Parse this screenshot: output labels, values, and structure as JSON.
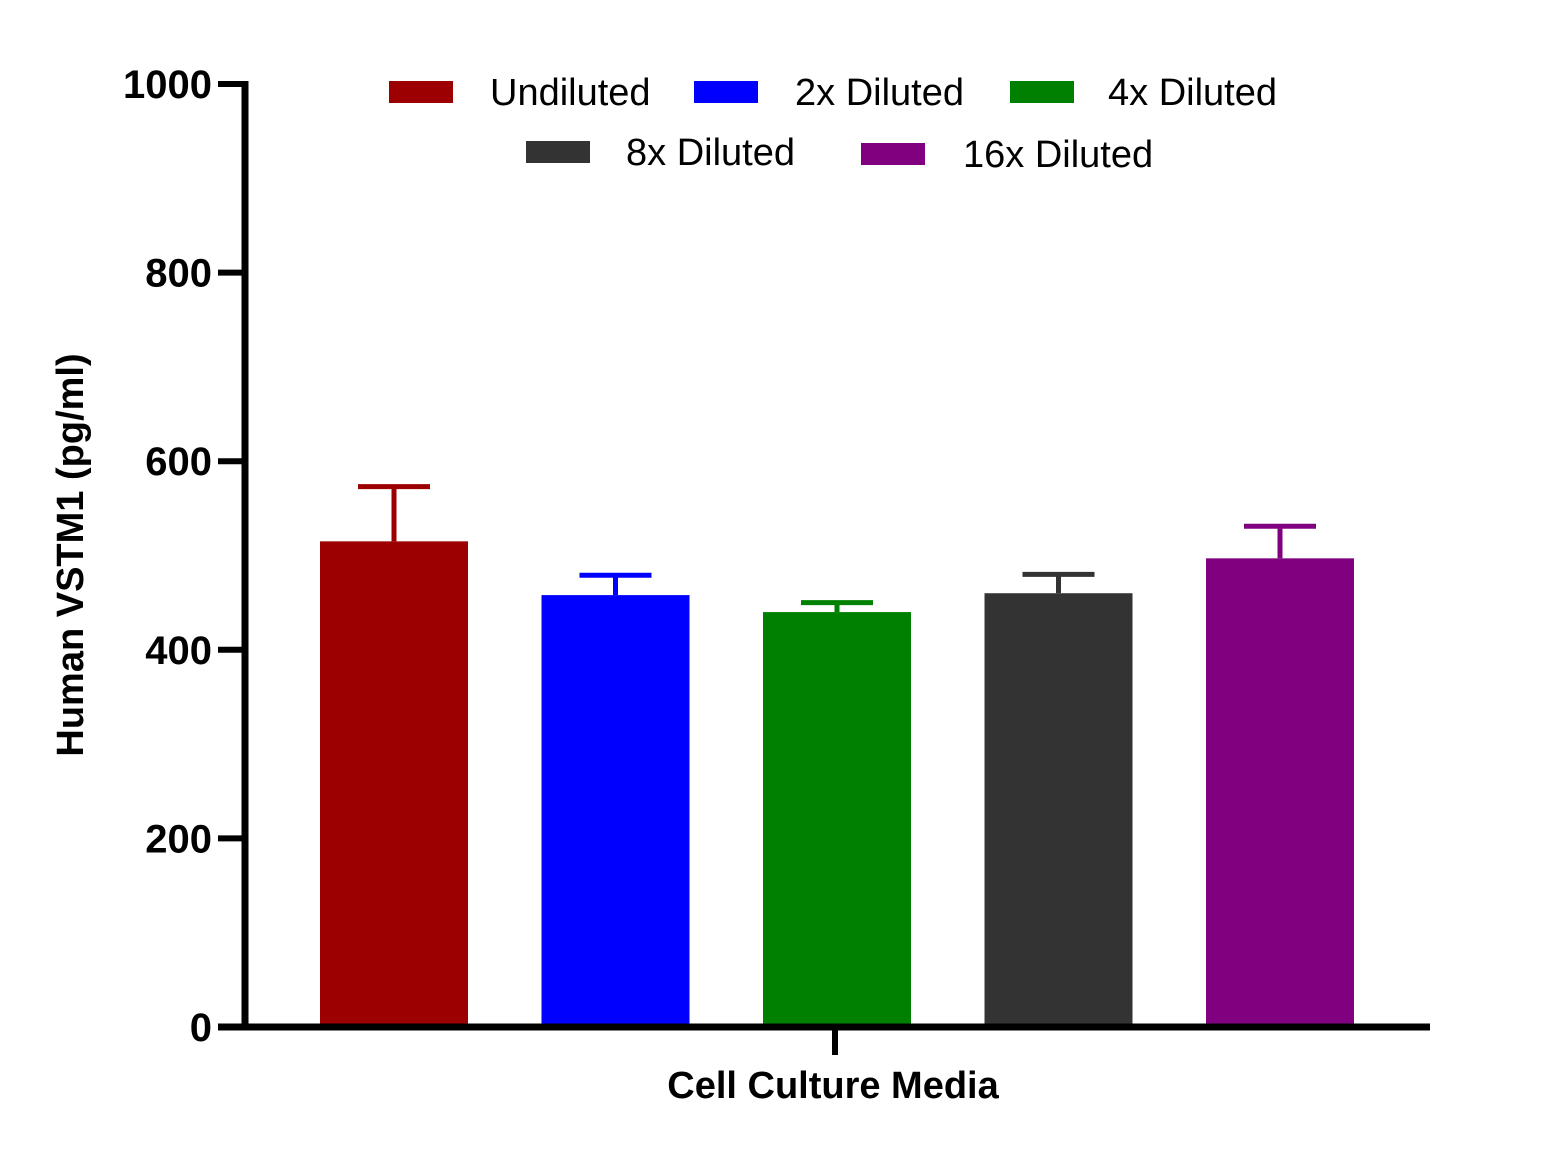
{
  "chart_data": {
    "type": "bar",
    "xlabel": "Cell Culture Media",
    "ylabel": "Human VSTM1 (pg/ml)",
    "ylim": [
      0,
      1000
    ],
    "yticks": [
      0,
      200,
      400,
      600,
      800,
      1000
    ],
    "category": "Cell Culture Media",
    "legend_position": "top",
    "grid": false,
    "series": [
      {
        "name": "Undiluted",
        "value": 515,
        "error": 58,
        "color": "#9c0000"
      },
      {
        "name": "2x Diluted",
        "value": 458,
        "error": 21,
        "color": "#0000ff"
      },
      {
        "name": "4x Diluted",
        "value": 440,
        "error": 10,
        "color": "#008000"
      },
      {
        "name": "8x Diluted",
        "value": 460,
        "error": 20,
        "color": "#333333"
      },
      {
        "name": "16x Diluted",
        "value": 497,
        "error": 34,
        "color": "#800080"
      }
    ]
  }
}
